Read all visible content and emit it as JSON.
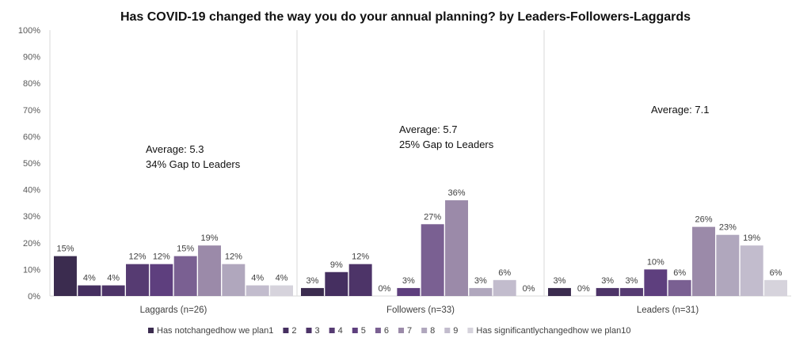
{
  "chart_data": {
    "type": "bar",
    "title": "Has COVID-19 changed the way you do your annual planning? by Leaders-Followers-Laggards",
    "ylim": [
      0,
      100
    ],
    "y_ticks": [
      "0%",
      "10%",
      "20%",
      "30%",
      "40%",
      "50%",
      "60%",
      "70%",
      "80%",
      "90%",
      "100%"
    ],
    "grid": false,
    "legend_position": "bottom",
    "categories": [
      "Laggards (n=26)",
      "Followers (n=33)",
      "Leaders (n=31)"
    ],
    "series": [
      {
        "name": "Has notchangedhow we plan1",
        "color": "#3b2c4f",
        "values": [
          15,
          3,
          3
        ]
      },
      {
        "name": "2",
        "color": "#452f60",
        "values": [
          4,
          9,
          0
        ]
      },
      {
        "name": "3",
        "color": "#4d3468",
        "values": [
          4,
          12,
          3
        ]
      },
      {
        "name": "4",
        "color": "#563b72",
        "values": [
          12,
          0,
          3
        ]
      },
      {
        "name": "5",
        "color": "#5e3f7e",
        "values": [
          12,
          3,
          10
        ]
      },
      {
        "name": "6",
        "color": "#7a6092",
        "values": [
          15,
          27,
          6
        ]
      },
      {
        "name": "7",
        "color": "#9b8aa9",
        "values": [
          19,
          36,
          26
        ]
      },
      {
        "name": "8",
        "color": "#b0a7bd",
        "values": [
          12,
          3,
          23
        ]
      },
      {
        "name": "9",
        "color": "#c2bccd",
        "values": [
          4,
          6,
          19
        ]
      },
      {
        "name": "Has significantlychangedhow we plan10",
        "color": "#d6d3dc",
        "values": [
          4,
          0,
          6
        ]
      }
    ],
    "data_labels": [
      [
        "15%",
        "4%",
        "4%",
        "12%",
        "12%",
        "15%",
        "19%",
        "12%",
        "4%",
        "4%"
      ],
      [
        "3%",
        "9%",
        "12%",
        "0%",
        "3%",
        "27%",
        "36%",
        "3%",
        "6%",
        "0%"
      ],
      [
        "3%",
        "0%",
        "3%",
        "3%",
        "10%",
        "6%",
        "26%",
        "23%",
        "19%",
        "6%"
      ]
    ],
    "annotations": [
      {
        "group": 0,
        "lines": [
          "Average: 5.3",
          "34% Gap to Leaders"
        ]
      },
      {
        "group": 1,
        "lines": [
          "Average: 5.7",
          "25% Gap to Leaders"
        ]
      },
      {
        "group": 2,
        "lines": [
          "Average: 7.1"
        ]
      }
    ]
  }
}
